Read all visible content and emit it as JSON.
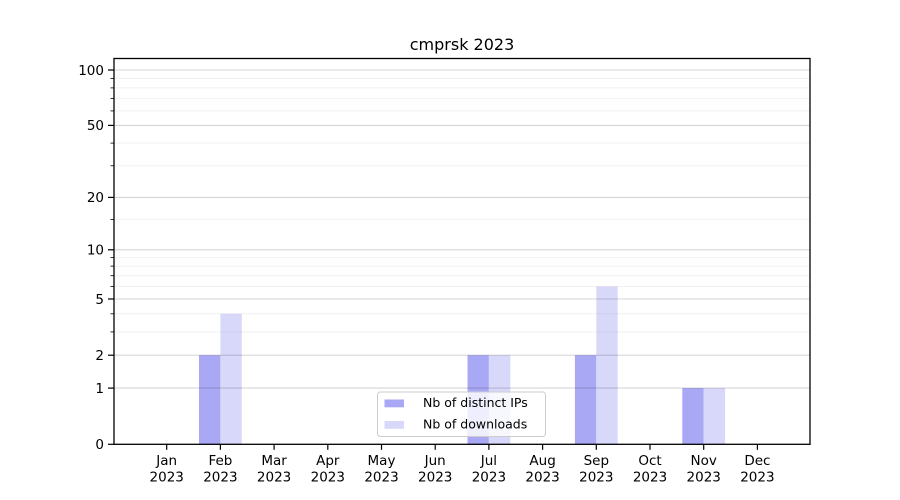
{
  "chart_data": {
    "type": "bar",
    "title": "cmprsk 2023",
    "categories": [
      "Jan",
      "Feb",
      "Mar",
      "Apr",
      "May",
      "Jun",
      "Jul",
      "Aug",
      "Sep",
      "Oct",
      "Nov",
      "Dec"
    ],
    "x_sub_label": "2023",
    "series": [
      {
        "name": "Nb of distinct IPs",
        "color": "#a8a8f5",
        "values": [
          0,
          2,
          0,
          0,
          0,
          0,
          2,
          0,
          2,
          0,
          1,
          0
        ]
      },
      {
        "name": "Nb of downloads",
        "color": "#d8d8fa",
        "values": [
          0,
          4,
          0,
          0,
          0,
          0,
          2,
          0,
          6,
          0,
          1,
          0
        ]
      }
    ],
    "y_scale": "log1p",
    "y_ticks": [
      0,
      1,
      2,
      5,
      10,
      20,
      50,
      100
    ],
    "y_minor_ticks": [
      3,
      4,
      6,
      7,
      8,
      9,
      15,
      30,
      40,
      60,
      70,
      80,
      90
    ],
    "ylim": [
      0,
      115
    ],
    "grid": true,
    "legend": {
      "position": "lower-center",
      "frame_alpha": 0.8
    }
  },
  "colors": {
    "background": "#ffffff",
    "axis": "#000000",
    "grid_major": "rgba(0,0,0,0.16)",
    "grid_minor": "rgba(0,0,0,0.055)",
    "legend_border": "#cccccc",
    "legend_background": "rgba(255,255,255,0.8)"
  }
}
